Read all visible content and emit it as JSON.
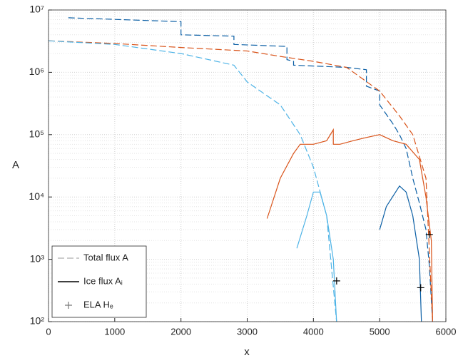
{
  "chart_data": {
    "type": "line",
    "xlabel": "x",
    "ylabel": "A",
    "xlim": [
      0,
      6000
    ],
    "xticks": [
      0,
      1000,
      2000,
      3000,
      4000,
      5000,
      6000
    ],
    "ylim": [
      100,
      10000000
    ],
    "yscale": "log",
    "yticks": [
      {
        "value": 100,
        "label": "10²"
      },
      {
        "value": 1000,
        "label": "10³"
      },
      {
        "value": 10000,
        "label": "10⁴"
      },
      {
        "value": 100000,
        "label": "10⁵"
      },
      {
        "value": 1000000,
        "label": "10⁶"
      },
      {
        "value": 10000000,
        "label": "10⁷"
      }
    ],
    "grid": true,
    "minor_grid": true,
    "series": [
      {
        "color": "#0b5fa5",
        "style": "dashed",
        "x": [
          300,
          2000,
          2000,
          2800,
          2800,
          3600,
          3600,
          3700,
          3700,
          4500,
          4800,
          4800,
          5000,
          5000,
          5200,
          5300,
          5400,
          5500,
          5600,
          5700,
          5750,
          5800
        ],
        "values": [
          7500000,
          6500000,
          4000000,
          3800000,
          2800000,
          2600000,
          1600000,
          1500000,
          1300000,
          1200000,
          1100000,
          600000,
          500000,
          300000,
          150000,
          100000,
          60000,
          20000,
          8000,
          3000,
          800,
          100
        ]
      },
      {
        "color": "#d95319",
        "style": "dashed",
        "x": [
          0,
          1000,
          2000,
          3000,
          3500,
          4000,
          4500,
          5000,
          5300,
          5500,
          5700,
          5800
        ],
        "values": [
          3200000,
          2900000,
          2500000,
          2200000,
          1800000,
          1500000,
          1200000,
          500000,
          200000,
          100000,
          20000,
          100
        ]
      },
      {
        "color": "#4db3e6",
        "style": "dashed",
        "x": [
          0,
          1000,
          2000,
          2800,
          3000,
          3500,
          3800,
          4000,
          4200,
          4350
        ],
        "values": [
          3200000,
          2800000,
          2000000,
          1300000,
          700000,
          300000,
          100000,
          30000,
          5000,
          100
        ]
      },
      {
        "color": "#d95319",
        "style": "solid",
        "x": [
          3300,
          3500,
          3700,
          3800,
          4000,
          4200,
          4300,
          4300,
          4400,
          4600,
          4800,
          5000,
          5200,
          5400,
          5600,
          5700,
          5780,
          5800
        ],
        "values": [
          4500,
          20000,
          50000,
          70000,
          70000,
          80000,
          120000,
          70000,
          70000,
          80000,
          90000,
          100000,
          80000,
          70000,
          40000,
          10000,
          2000,
          100
        ]
      },
      {
        "color": "#4db3e6",
        "style": "solid",
        "x": [
          3750,
          3900,
          4000,
          4100,
          4200,
          4300,
          4350
        ],
        "values": [
          1500,
          5000,
          12000,
          12000,
          5000,
          1000,
          100
        ]
      },
      {
        "color": "#0b5fa5",
        "style": "solid",
        "x": [
          5000,
          5100,
          5300,
          5400,
          5500,
          5600,
          5630
        ],
        "values": [
          3000,
          7000,
          15000,
          12000,
          5000,
          1000,
          100
        ]
      }
    ],
    "markers": {
      "color": "#000000",
      "x": [
        4350,
        5620,
        5750
      ],
      "values": [
        450,
        350,
        2500
      ]
    },
    "legend": [
      {
        "label": "Total flux A",
        "style": "dashed",
        "color": "#bbbbbb"
      },
      {
        "label": "Ice flux Aᵢ",
        "style": "solid",
        "color": "#000000"
      },
      {
        "label": "ELA Hₑ",
        "style": "marker",
        "color": "#777777"
      }
    ],
    "legend_position": "lower left"
  }
}
